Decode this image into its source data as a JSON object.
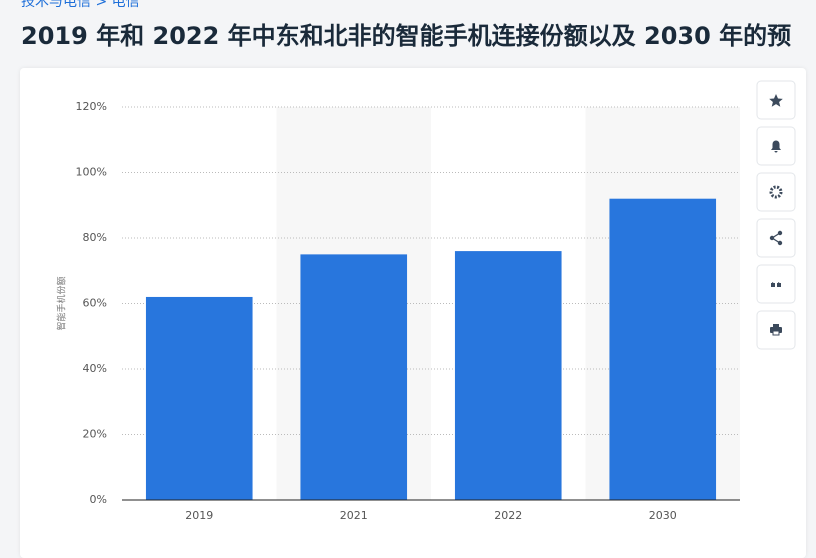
{
  "breadcrumb": "技术与电信 > 电信",
  "page_title": "2019 年和 2022 年中东和北非的智能手机连接份额以及 2030 年的预",
  "chart_data": {
    "type": "bar",
    "ylabel": "智能手机份额",
    "categories": [
      "2019",
      "2021",
      "2022",
      "2030"
    ],
    "values": [
      62,
      75,
      76,
      92
    ],
    "color": "#2876dd",
    "ylim": [
      0,
      120
    ],
    "yticks": [
      {
        "value": 0,
        "label": "0%"
      },
      {
        "value": 20,
        "label": "20%"
      },
      {
        "value": 40,
        "label": "40%"
      },
      {
        "value": 60,
        "label": "60%"
      },
      {
        "value": 80,
        "label": "80%"
      },
      {
        "value": 100,
        "label": "100%"
      },
      {
        "value": 120,
        "label": "120%"
      }
    ],
    "grid": true
  }
}
